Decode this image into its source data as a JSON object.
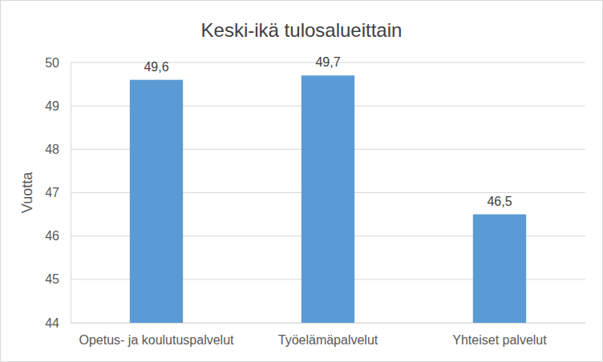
{
  "chart_data": {
    "type": "bar",
    "title": "Keski-ikä tulosalueittain",
    "y_label": "Vuotta",
    "categories": [
      "Opetus- ja koulutuspalvelut",
      "Työelämäpalvelut",
      "Yhteiset palvelut"
    ],
    "values": [
      49.6,
      49.7,
      46.5
    ],
    "value_labels": [
      "49,6",
      "49,7",
      "46,5"
    ],
    "color": "#5b9bd5",
    "ylim": [
      44,
      50
    ],
    "yticks": [
      44,
      45,
      46,
      47,
      48,
      49,
      50
    ],
    "grid": true,
    "data_labels": true
  }
}
